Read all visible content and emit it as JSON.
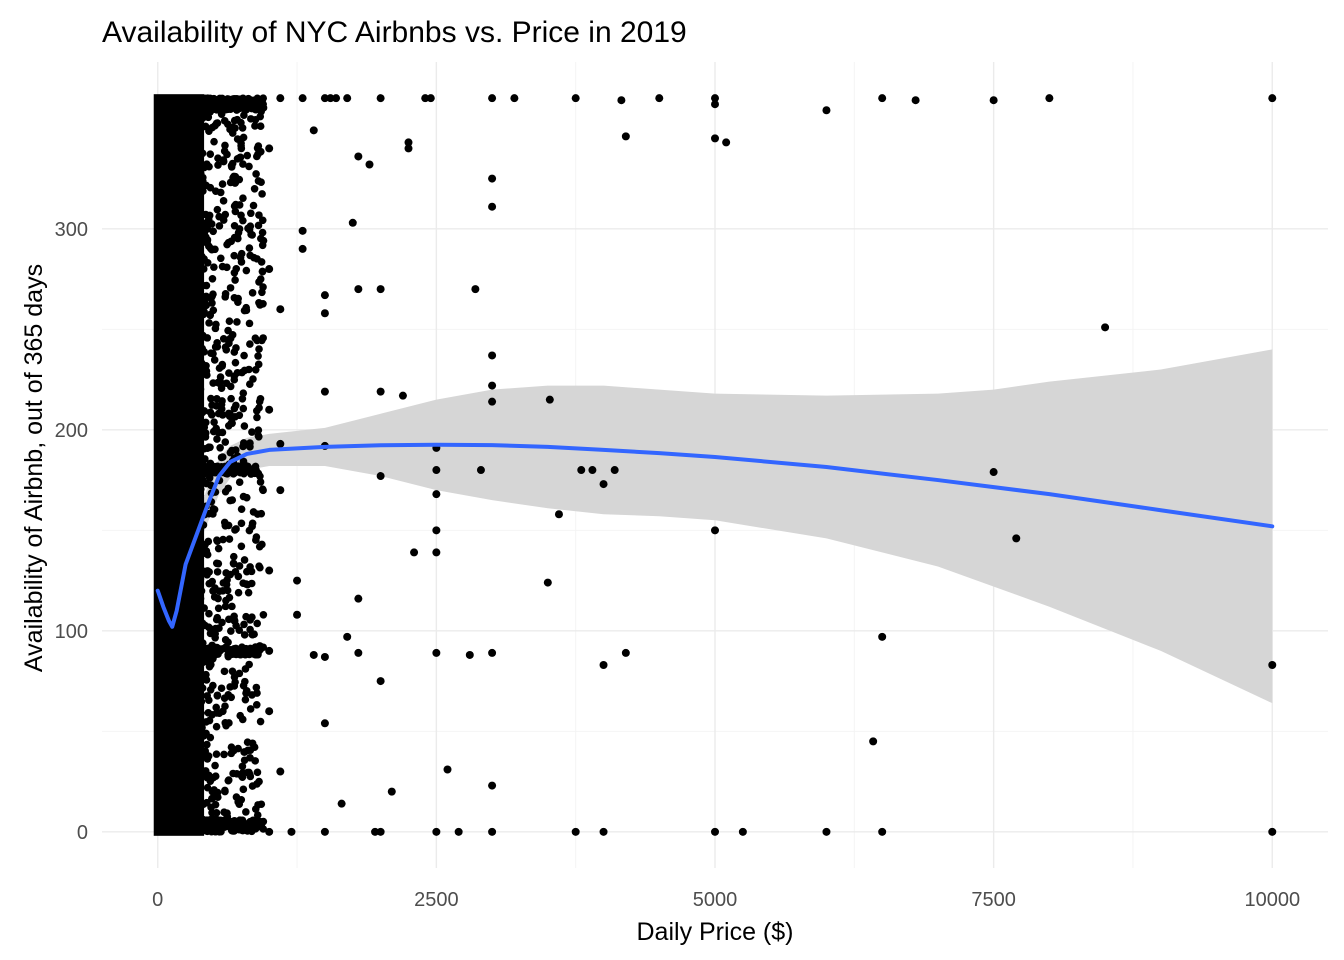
{
  "chart_data": {
    "type": "scatter",
    "title": "Availability of NYC Airbnbs vs. Price in 2019",
    "xlabel": "Daily Price ($)",
    "ylabel": "Availability of Airbnb, out of 365 days",
    "xlim": [
      -500,
      10500
    ],
    "ylim": [
      -18,
      383
    ],
    "x_ticks": [
      0,
      2500,
      5000,
      7500,
      10000
    ],
    "x_tick_labels": [
      "0",
      "2500",
      "5000",
      "7500",
      "10000"
    ],
    "y_ticks": [
      0,
      100,
      200,
      300
    ],
    "y_tick_labels": [
      "0",
      "100",
      "200",
      "300"
    ],
    "grid": true,
    "colors": {
      "points": "#000000",
      "smooth_line": "#3366FF",
      "confidence_band": "#d6d6d6",
      "grid_major": "#ebebeb",
      "grid_minor": "#f4f4f4"
    },
    "dense_cluster": {
      "description": "overplotted points",
      "x_range": [
        0,
        700
      ],
      "y_range": [
        0,
        365
      ]
    },
    "points": [
      [
        10000,
        365
      ],
      [
        10000,
        83
      ],
      [
        10000,
        0
      ],
      [
        8500,
        251
      ],
      [
        8000,
        365
      ],
      [
        7703,
        146
      ],
      [
        7500,
        179
      ],
      [
        7500,
        364
      ],
      [
        6800,
        364
      ],
      [
        6500,
        365
      ],
      [
        6500,
        97
      ],
      [
        6500,
        0
      ],
      [
        6419,
        45
      ],
      [
        6000,
        359
      ],
      [
        6000,
        0
      ],
      [
        5250,
        0
      ],
      [
        5100,
        343
      ],
      [
        5000,
        365
      ],
      [
        5000,
        362
      ],
      [
        5000,
        345
      ],
      [
        5000,
        150
      ],
      [
        5000,
        0
      ],
      [
        4500,
        365
      ],
      [
        4200,
        346
      ],
      [
        4200,
        89
      ],
      [
        4160,
        364
      ],
      [
        4000,
        173
      ],
      [
        4000,
        83
      ],
      [
        4000,
        0
      ],
      [
        4100,
        180
      ],
      [
        3900,
        180
      ],
      [
        3800,
        180
      ],
      [
        3750,
        365
      ],
      [
        3750,
        0
      ],
      [
        3600,
        158
      ],
      [
        3518,
        215
      ],
      [
        3500,
        124
      ],
      [
        3200,
        365
      ],
      [
        3000,
        365
      ],
      [
        3000,
        325
      ],
      [
        3000,
        311
      ],
      [
        3000,
        237
      ],
      [
        3000,
        222
      ],
      [
        3000,
        214
      ],
      [
        3000,
        89
      ],
      [
        3000,
        23
      ],
      [
        3000,
        0
      ],
      [
        2900,
        180
      ],
      [
        2850,
        270
      ],
      [
        2800,
        88
      ],
      [
        2700,
        0
      ],
      [
        2600,
        31
      ],
      [
        2500,
        180
      ],
      [
        2500,
        191
      ],
      [
        2500,
        168
      ],
      [
        2500,
        150
      ],
      [
        2500,
        139
      ],
      [
        2500,
        89
      ],
      [
        2500,
        0
      ],
      [
        2450,
        365
      ],
      [
        2400,
        365
      ],
      [
        2300,
        139
      ],
      [
        2250,
        343
      ],
      [
        2250,
        340
      ],
      [
        2200,
        217
      ],
      [
        2100,
        20
      ],
      [
        2000,
        365
      ],
      [
        2000,
        270
      ],
      [
        2000,
        219
      ],
      [
        2000,
        177
      ],
      [
        2000,
        75
      ],
      [
        2000,
        0
      ],
      [
        1950,
        0
      ],
      [
        1900,
        332
      ],
      [
        1800,
        116
      ],
      [
        1800,
        270
      ],
      [
        1800,
        89
      ],
      [
        1800,
        336
      ],
      [
        1750,
        303
      ],
      [
        1700,
        97
      ],
      [
        1700,
        365
      ],
      [
        1650,
        14
      ],
      [
        1600,
        365
      ],
      [
        1550,
        365
      ],
      [
        1500,
        267
      ],
      [
        1500,
        258
      ],
      [
        1500,
        219
      ],
      [
        1500,
        192
      ],
      [
        1500,
        87
      ],
      [
        1500,
        54
      ],
      [
        1500,
        365
      ],
      [
        1500,
        0
      ],
      [
        1400,
        349
      ],
      [
        1400,
        88
      ],
      [
        1300,
        365
      ],
      [
        1300,
        299
      ],
      [
        1300,
        290
      ],
      [
        1250,
        125
      ],
      [
        1250,
        108
      ],
      [
        1200,
        0
      ],
      [
        1100,
        365
      ],
      [
        1100,
        260
      ],
      [
        1100,
        193
      ],
      [
        1100,
        170
      ],
      [
        1100,
        30
      ],
      [
        1000,
        340
      ],
      [
        1000,
        280
      ],
      [
        1000,
        210
      ],
      [
        1000,
        130
      ],
      [
        1000,
        90
      ],
      [
        1000,
        60
      ],
      [
        1000,
        0
      ]
    ],
    "smooth_curve": [
      [
        0,
        120
      ],
      [
        50,
        112
      ],
      [
        100,
        105
      ],
      [
        130,
        102
      ],
      [
        170,
        110
      ],
      [
        250,
        133
      ],
      [
        350,
        148
      ],
      [
        450,
        163
      ],
      [
        550,
        177
      ],
      [
        650,
        184
      ],
      [
        800,
        188
      ],
      [
        1000,
        190
      ],
      [
        1500,
        191.5
      ],
      [
        2000,
        192.3
      ],
      [
        2500,
        192.6
      ],
      [
        3000,
        192.4
      ],
      [
        3500,
        191.5
      ],
      [
        4000,
        190
      ],
      [
        4500,
        188.4
      ],
      [
        5000,
        186.5
      ],
      [
        6000,
        181.5
      ],
      [
        7000,
        175
      ],
      [
        8000,
        168
      ],
      [
        9000,
        160
      ],
      [
        10000,
        152
      ]
    ],
    "confidence_upper": [
      [
        0,
        128
      ],
      [
        50,
        120
      ],
      [
        100,
        112
      ],
      [
        130,
        108
      ],
      [
        170,
        114
      ],
      [
        250,
        140
      ],
      [
        350,
        156
      ],
      [
        450,
        172
      ],
      [
        550,
        186
      ],
      [
        650,
        192
      ],
      [
        800,
        196
      ],
      [
        1000,
        198
      ],
      [
        1500,
        201
      ],
      [
        2000,
        208
      ],
      [
        2500,
        215
      ],
      [
        3000,
        220
      ],
      [
        3500,
        222
      ],
      [
        4000,
        222
      ],
      [
        4500,
        220
      ],
      [
        5000,
        218
      ],
      [
        6000,
        217
      ],
      [
        7000,
        218
      ],
      [
        7500,
        220
      ],
      [
        8000,
        224
      ],
      [
        9000,
        230
      ],
      [
        10000,
        240
      ]
    ],
    "confidence_lower": [
      [
        0,
        112
      ],
      [
        50,
        104
      ],
      [
        100,
        98
      ],
      [
        130,
        96
      ],
      [
        170,
        106
      ],
      [
        250,
        126
      ],
      [
        350,
        140
      ],
      [
        450,
        154
      ],
      [
        550,
        168
      ],
      [
        650,
        176
      ],
      [
        800,
        180
      ],
      [
        1000,
        182
      ],
      [
        1500,
        182
      ],
      [
        2000,
        177
      ],
      [
        2500,
        170
      ],
      [
        3000,
        165
      ],
      [
        3500,
        161
      ],
      [
        4000,
        158
      ],
      [
        4500,
        157
      ],
      [
        5000,
        155
      ],
      [
        6000,
        146
      ],
      [
        7000,
        132
      ],
      [
        8000,
        112
      ],
      [
        9000,
        90
      ],
      [
        10000,
        64
      ]
    ]
  }
}
